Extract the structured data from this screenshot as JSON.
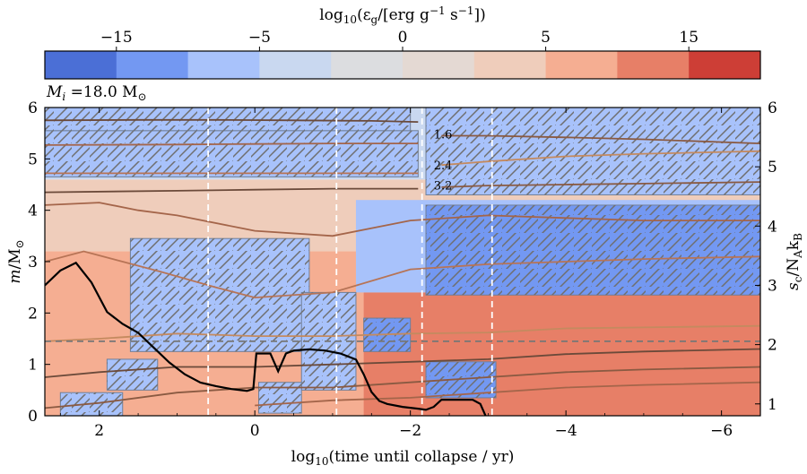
{
  "chart_data": {
    "type": "heatmap",
    "colorbar": {
      "label": "log10(εg/[erg g^-1 s^-1])",
      "label_parts": {
        "base": "log",
        "sub": "10",
        "mid": "(ε",
        "sub2": "g",
        "mid2": "/[erg g",
        "sup1": "−1",
        "mid3": "s",
        "sup2": "−1",
        "end": "])"
      },
      "ticks": [
        "−15",
        "−5",
        "0",
        "5",
        "15"
      ],
      "tick_positions_index": [
        1,
        3,
        5,
        7,
        9
      ],
      "bins": 10,
      "colors": [
        "#4b6fd6",
        "#7398f2",
        "#a8c2fb",
        "#c9d8f0",
        "#dcdde0",
        "#e4d9d3",
        "#efcdbb",
        "#f5ae92",
        "#e77f67",
        "#cd3e36"
      ]
    },
    "annotation": {
      "label": "M",
      "sub": "i",
      "value": " =18.0 M",
      "sym": "⊙"
    },
    "xaxis": {
      "label": "log10(time until collapse / yr)",
      "range": [
        2.7,
        -6.5
      ],
      "ticks": [
        2,
        0,
        -2,
        -4,
        -6
      ],
      "tick_labels": [
        "2",
        "0",
        "−2",
        "−4",
        "−6"
      ]
    },
    "yaxis_left": {
      "label": "m/M⊙",
      "range": [
        0,
        6
      ],
      "ticks": [
        0,
        1,
        2,
        3,
        4,
        5,
        6
      ]
    },
    "yaxis_right": {
      "label": "sc/NAkB",
      "range": [
        0.8,
        6
      ],
      "ticks": [
        1,
        2,
        3,
        4,
        5,
        6
      ]
    },
    "vertical_markers_x": [
      0.6,
      -1.05,
      -2.15,
      -3.05
    ],
    "horizontal_marker_y": 1.45,
    "contour_labels": [
      {
        "text": "1.6",
        "x": -2.3,
        "y": 5.4
      },
      {
        "text": "2.4",
        "x": -2.3,
        "y": 4.8
      },
      {
        "text": "3.2",
        "x": -2.3,
        "y": 4.4
      }
    ],
    "central_entropy": {
      "x": [
        2.7,
        2.5,
        2.3,
        2.1,
        1.9,
        1.7,
        1.5,
        1.3,
        1.1,
        0.9,
        0.7,
        0.5,
        0.3,
        0.1,
        0.02,
        -0.02,
        -0.2,
        -0.3,
        -0.4,
        -0.5,
        -0.7,
        -0.9,
        -1.1,
        -1.3,
        -1.4,
        -1.5,
        -1.6,
        -1.7,
        -1.9,
        -2.1,
        -2.2,
        -2.3,
        -2.4,
        -2.6,
        -2.8,
        -2.9,
        -3.0,
        -3.1,
        -3.3,
        -3.5,
        -3.7,
        -4.0,
        -4.5,
        -5.0,
        -5.5,
        -6.0,
        -6.5
      ],
      "y": [
        3.0,
        3.25,
        3.38,
        3.05,
        2.55,
        2.35,
        2.2,
        1.95,
        1.7,
        1.5,
        1.36,
        1.3,
        1.25,
        1.22,
        1.25,
        1.85,
        1.85,
        1.55,
        1.85,
        1.9,
        1.92,
        1.9,
        1.85,
        1.75,
        1.5,
        1.2,
        1.05,
        1.0,
        0.95,
        0.92,
        0.9,
        0.95,
        1.07,
        1.07,
        1.07,
        1.0,
        0.7,
        0.5,
        0.3,
        0.22,
        0.2,
        0.2,
        0.18,
        0.17,
        0.17,
        0.16,
        0.16
      ]
    },
    "mass_contours": [
      {
        "x": [
          2.7,
          1.5,
          0.5,
          -0.5,
          -1.5,
          -2.1
        ],
        "y": [
          5.75,
          5.76,
          5.76,
          5.75,
          5.74,
          5.72
        ]
      },
      {
        "x": [
          -2.4,
          -3.0,
          -4.0,
          -5.0,
          -6.5
        ],
        "y": [
          5.45,
          5.45,
          5.42,
          5.38,
          5.3
        ]
      },
      {
        "x": [
          2.7,
          1.0,
          0.0,
          -1.0,
          -2.1
        ],
        "y": [
          5.27,
          5.28,
          5.29,
          5.3,
          5.3
        ]
      },
      {
        "x": [
          2.7,
          1.0,
          0.0,
          -1.0,
          -2.1
        ],
        "y": [
          4.72,
          4.72,
          4.72,
          4.72,
          4.72
        ]
      },
      {
        "x": [
          -2.4,
          -3.0,
          -4.0,
          -5.0,
          -6.5
        ],
        "y": [
          4.88,
          4.95,
          5.05,
          5.1,
          5.15
        ]
      },
      {
        "x": [
          2.7,
          1.0,
          0.0,
          -1.0,
          -2.1
        ],
        "y": [
          4.35,
          4.38,
          4.4,
          4.42,
          4.42
        ]
      },
      {
        "x": [
          -2.4,
          -3.0,
          -4.0,
          -5.0,
          -6.5
        ],
        "y": [
          4.45,
          4.48,
          4.5,
          4.52,
          4.55
        ]
      },
      {
        "x": [
          2.7,
          2.0,
          1.5,
          1.0,
          0.0,
          -1.0,
          -2.0,
          -3.0,
          -4.0,
          -5.0,
          -6.5
        ],
        "y": [
          4.1,
          4.15,
          4.0,
          3.9,
          3.6,
          3.5,
          3.8,
          3.9,
          3.85,
          3.8,
          3.8
        ]
      },
      {
        "x": [
          2.7,
          2.2,
          1.7,
          1.2,
          0.5,
          0.0,
          -1.0,
          -2.0,
          -3.0,
          -4.0,
          -5.0,
          -6.5
        ],
        "y": [
          3.0,
          3.2,
          3.0,
          2.8,
          2.5,
          2.3,
          2.4,
          2.85,
          2.95,
          3.0,
          3.05,
          3.1
        ]
      },
      {
        "x": [
          2.7,
          2.0,
          1.0,
          0.0,
          -1.0,
          -2.0,
          -3.0,
          -4.0,
          -5.0,
          -6.5
        ],
        "y": [
          1.45,
          1.5,
          1.6,
          1.55,
          1.55,
          1.6,
          1.62,
          1.7,
          1.72,
          1.75
        ]
      },
      {
        "x": [
          2.7,
          2.0,
          1.0,
          0.0,
          -1.0,
          -2.0,
          -3.0,
          -4.0,
          -5.0,
          -6.5
        ],
        "y": [
          0.75,
          0.85,
          0.95,
          0.95,
          1.0,
          1.05,
          1.1,
          1.2,
          1.25,
          1.3
        ]
      },
      {
        "x": [
          2.7,
          2.0,
          1.0,
          0.0,
          -1.0,
          -2.0,
          -3.0,
          -4.0,
          -5.0,
          -6.5
        ],
        "y": [
          0.15,
          0.25,
          0.45,
          0.55,
          0.55,
          0.65,
          0.75,
          0.85,
          0.9,
          0.95
        ]
      },
      {
        "x": [
          0.0,
          -1.0,
          -2.0,
          -3.0,
          -4.0,
          -5.0,
          -6.5
        ],
        "y": [
          0.2,
          0.3,
          0.35,
          0.45,
          0.55,
          0.6,
          0.65
        ]
      }
    ],
    "convective_regions": [
      {
        "x0": 2.7,
        "x1": -2.1,
        "y0": 4.65,
        "y1": 5.55,
        "tone": "#a8c2fb"
      },
      {
        "x0": 2.7,
        "x1": -2.0,
        "y0": 5.55,
        "y1": 6.0,
        "tone": "#a8c2fb"
      },
      {
        "x0": -2.2,
        "x1": -6.5,
        "y0": 4.3,
        "y1": 6.0,
        "tone": "#a8c2fb"
      },
      {
        "x0": -2.2,
        "x1": -6.5,
        "y0": 2.35,
        "y1": 4.1,
        "tone": "#7398f2"
      },
      {
        "x0": 1.6,
        "x1": -0.7,
        "y0": 1.25,
        "y1": 3.45,
        "tone": "#a8c2fb"
      },
      {
        "x0": -0.6,
        "x1": -1.3,
        "y0": 0.5,
        "y1": 2.4,
        "tone": "#a8c2fb"
      },
      {
        "x0": 1.9,
        "x1": 1.25,
        "y0": 0.5,
        "y1": 1.1,
        "tone": "#a8c2fb"
      },
      {
        "x0": 2.5,
        "x1": 1.7,
        "y0": 0.0,
        "y1": 0.45,
        "tone": "#a8c2fb"
      },
      {
        "x0": -0.05,
        "x1": -0.6,
        "y0": 0.05,
        "y1": 0.65,
        "tone": "#a8c2fb"
      },
      {
        "x0": -2.2,
        "x1": -3.1,
        "y0": 0.35,
        "y1": 1.05,
        "tone": "#7398f2"
      },
      {
        "x0": -1.4,
        "x1": -2.0,
        "y0": 1.25,
        "y1": 1.9,
        "tone": "#7398f2"
      }
    ],
    "background_regions": [
      {
        "x0": 2.7,
        "x1": -6.5,
        "y0": 0.0,
        "y1": 3.2,
        "color": "#f5ae92"
      },
      {
        "x0": 2.7,
        "x1": -6.5,
        "y0": 3.2,
        "y1": 4.6,
        "color": "#efcdbb"
      },
      {
        "x0": 2.7,
        "x1": -6.5,
        "y0": 4.6,
        "y1": 6.0,
        "color": "#c9d8f0"
      },
      {
        "x0": -1.4,
        "x1": -6.5,
        "y0": 0.0,
        "y1": 2.4,
        "color": "#e77f67"
      },
      {
        "x0": -1.3,
        "x1": -6.5,
        "y0": 2.4,
        "y1": 4.2,
        "color": "#a8c2fb"
      }
    ]
  }
}
